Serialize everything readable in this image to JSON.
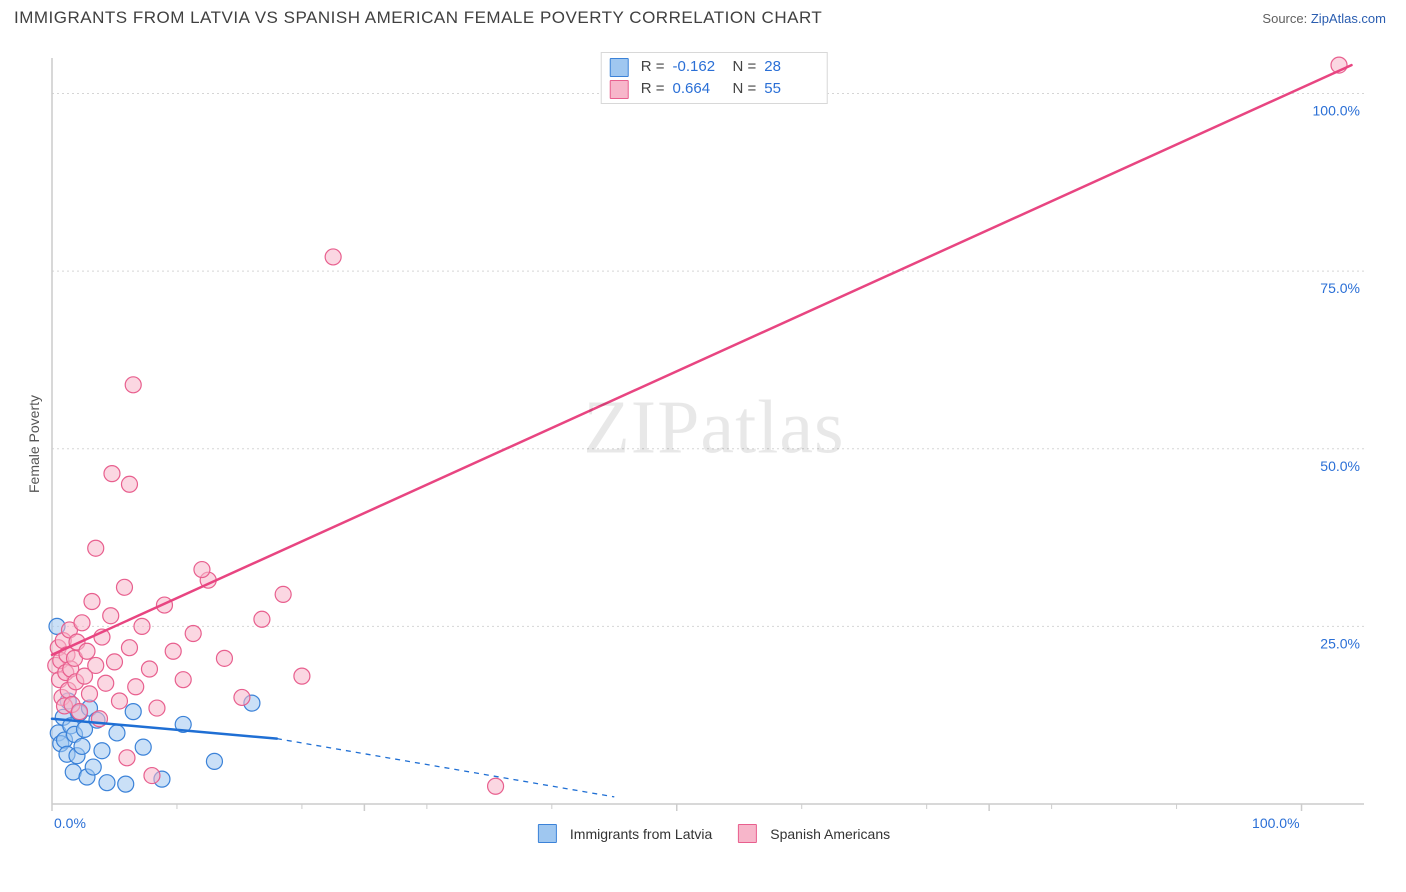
{
  "title_text": "IMMIGRANTS FROM LATVIA VS SPANISH AMERICAN FEMALE POVERTY CORRELATION CHART",
  "source_label": "Source:",
  "source_site": "ZipAtlas.com",
  "y_axis_title": "Female Poverty",
  "watermark_text": "ZIPatlas",
  "chart": {
    "type": "scatter-with-regression",
    "xlim": [
      0,
      105
    ],
    "ylim": [
      0,
      105
    ],
    "x_ticks": [
      0,
      25,
      50,
      75,
      100
    ],
    "y_ticks": [
      25,
      50,
      75,
      100
    ],
    "x_tick_labels": [
      "0.0%",
      "",
      "",
      "",
      "100.0%"
    ],
    "y_tick_labels": [
      "25.0%",
      "50.0%",
      "75.0%",
      "100.0%"
    ],
    "x_minor_ticks": [
      10,
      20,
      30,
      40,
      60,
      70,
      80,
      90
    ],
    "grid_color": "#d5d5d5",
    "grid_dash": "2,3",
    "axis_color": "#cccccc",
    "background": "#ffffff",
    "marker_radius": 8,
    "marker_stroke_width": 1.2,
    "line_width": 2.5,
    "dash_line_width": 1.3
  },
  "series": [
    {
      "id": "latvia",
      "label": "Immigrants from Latvia",
      "fill": "#9fc7f0",
      "fill_opacity": 0.55,
      "stroke": "#3b82d8",
      "line_color": "#1f6fd4",
      "R": "-0.162",
      "N": "28",
      "reg_solid": {
        "x1": 0,
        "y1": 12,
        "x2": 18,
        "y2": 9.2
      },
      "reg_dash": {
        "x1": 18,
        "y1": 9.2,
        "x2": 45,
        "y2": 1.0
      },
      "points": [
        [
          0.5,
          10
        ],
        [
          0.7,
          8.5
        ],
        [
          0.9,
          12.2
        ],
        [
          1.0,
          9.0
        ],
        [
          1.2,
          7.0
        ],
        [
          1.3,
          14.5
        ],
        [
          1.5,
          11.0
        ],
        [
          1.7,
          4.5
        ],
        [
          1.8,
          9.8
        ],
        [
          0.4,
          25.0
        ],
        [
          2.0,
          6.8
        ],
        [
          2.2,
          12.8
        ],
        [
          2.4,
          8.1
        ],
        [
          2.6,
          10.5
        ],
        [
          2.8,
          3.8
        ],
        [
          3.0,
          13.5
        ],
        [
          3.3,
          5.2
        ],
        [
          3.6,
          11.8
        ],
        [
          4.0,
          7.5
        ],
        [
          4.4,
          3.0
        ],
        [
          5.2,
          10.0
        ],
        [
          5.9,
          2.8
        ],
        [
          6.5,
          13.0
        ],
        [
          7.3,
          8.0
        ],
        [
          8.8,
          3.5
        ],
        [
          10.5,
          11.2
        ],
        [
          13.0,
          6.0
        ],
        [
          16.0,
          14.2
        ]
      ]
    },
    {
      "id": "spanish",
      "label": "Spanish Americans",
      "fill": "#f7b6ca",
      "fill_opacity": 0.55,
      "stroke": "#e85f8e",
      "line_color": "#e84581",
      "R": "0.664",
      "N": "55",
      "reg_solid": {
        "x1": 0,
        "y1": 21,
        "x2": 104,
        "y2": 104
      },
      "reg_dash": null,
      "points": [
        [
          0.3,
          19.5
        ],
        [
          0.5,
          22.0
        ],
        [
          0.6,
          17.5
        ],
        [
          0.7,
          20.2
        ],
        [
          0.8,
          15.0
        ],
        [
          0.9,
          23.0
        ],
        [
          1.0,
          13.8
        ],
        [
          1.1,
          18.5
        ],
        [
          1.2,
          21.0
        ],
        [
          1.3,
          16.0
        ],
        [
          1.4,
          24.5
        ],
        [
          1.5,
          19.0
        ],
        [
          1.6,
          14.0
        ],
        [
          1.8,
          20.5
        ],
        [
          1.9,
          17.2
        ],
        [
          2.0,
          22.8
        ],
        [
          2.2,
          13.0
        ],
        [
          2.4,
          25.5
        ],
        [
          2.6,
          18.0
        ],
        [
          2.8,
          21.5
        ],
        [
          3.0,
          15.5
        ],
        [
          3.2,
          28.5
        ],
        [
          3.5,
          19.5
        ],
        [
          3.8,
          12.0
        ],
        [
          4.0,
          23.5
        ],
        [
          4.3,
          17.0
        ],
        [
          4.7,
          26.5
        ],
        [
          3.5,
          36.0
        ],
        [
          5.0,
          20.0
        ],
        [
          5.4,
          14.5
        ],
        [
          5.8,
          30.5
        ],
        [
          6.2,
          22.0
        ],
        [
          6.7,
          16.5
        ],
        [
          7.2,
          25.0
        ],
        [
          7.8,
          19.0
        ],
        [
          6.2,
          45.0
        ],
        [
          8.4,
          13.5
        ],
        [
          9.0,
          28.0
        ],
        [
          9.7,
          21.5
        ],
        [
          6.5,
          59.0
        ],
        [
          10.5,
          17.5
        ],
        [
          11.3,
          24.0
        ],
        [
          4.8,
          46.5
        ],
        [
          12.5,
          31.5
        ],
        [
          13.8,
          20.5
        ],
        [
          12.0,
          33.0
        ],
        [
          15.2,
          15.0
        ],
        [
          16.8,
          26.0
        ],
        [
          22.5,
          77.0
        ],
        [
          18.5,
          29.5
        ],
        [
          20.0,
          18.0
        ],
        [
          35.5,
          2.5
        ],
        [
          8.0,
          4.0
        ],
        [
          6.0,
          6.5
        ],
        [
          103.0,
          104.0
        ]
      ]
    }
  ],
  "stats_legend": {
    "R_label": "R =",
    "N_label": "N ="
  },
  "bottom_legend": {
    "swatch_size": 17
  }
}
